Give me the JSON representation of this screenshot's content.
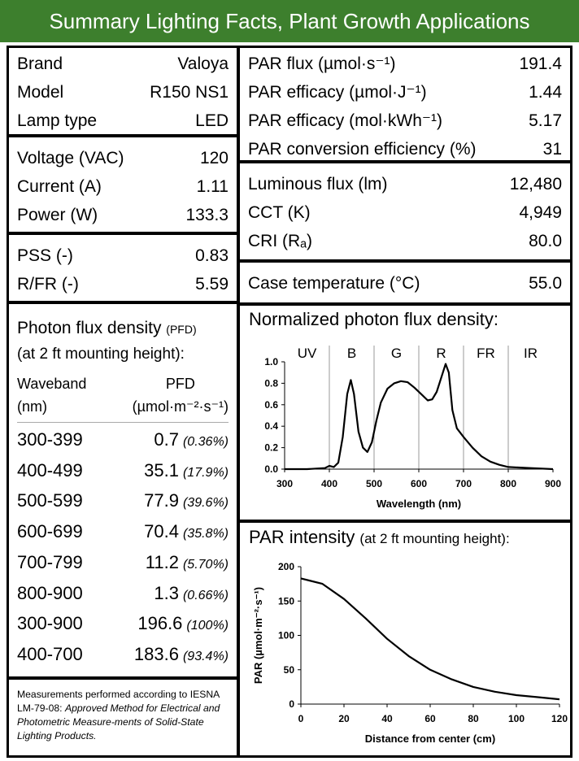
{
  "header": {
    "title": "Summary Lighting Facts, Plant Growth Applications"
  },
  "specs": [
    [
      {
        "label": "Brand",
        "value": "Valoya"
      },
      {
        "label": "Model",
        "value": "R150 NS1"
      },
      {
        "label": "Lamp type",
        "value": "LED"
      }
    ],
    [
      {
        "label": "Voltage (VAC)",
        "value": "120"
      },
      {
        "label": "Current (A)",
        "value": "1.11"
      },
      {
        "label": "Power (W)",
        "value": "133.3"
      }
    ],
    [
      {
        "label": "PSS (-)",
        "value": "0.83"
      },
      {
        "label": "R/FR (-)",
        "value": "5.59"
      }
    ]
  ],
  "par_specs": [
    [
      {
        "label": "PAR flux (µmol·s⁻¹)",
        "value": "191.4"
      },
      {
        "label": "PAR efficacy (µmol·J⁻¹)",
        "value": "1.44"
      },
      {
        "label": "PAR efficacy (mol·kWh⁻¹)",
        "value": "5.17"
      },
      {
        "label": "PAR conversion efficiency (%)",
        "value": "31"
      }
    ],
    [
      {
        "label": "Luminous flux (lm)",
        "value": "12,480"
      },
      {
        "label": "CCT (K)",
        "value": "4,949"
      },
      {
        "label": "CRI (Rₐ)",
        "value": "80.0"
      }
    ],
    [
      {
        "label": "Case temperature (°C)",
        "value": "55.0"
      }
    ]
  ],
  "pfd": {
    "title": "Photon flux density",
    "abbreviation": "(PFD)",
    "subtitle": "(at 2 ft mounting height):",
    "columns": [
      [
        "Waveband",
        "(nm)"
      ],
      [
        "PFD",
        "(µmol·m⁻²·s⁻¹)"
      ]
    ],
    "rows": [
      [
        "300-399",
        "0.7",
        "(0.36%)"
      ],
      [
        "400-499",
        "35.1",
        "(17.9%)"
      ],
      [
        "500-599",
        "77.9",
        "(39.6%)"
      ],
      [
        "600-699",
        "70.4",
        "(35.8%)"
      ],
      [
        "700-799",
        "11.2",
        "(5.70%)"
      ],
      [
        "800-900",
        "1.3",
        "(0.66%)"
      ],
      [
        "300-900",
        "196.6",
        "(100%)"
      ],
      [
        "400-700",
        "183.6",
        "(93.4%)"
      ]
    ]
  },
  "footnote": {
    "text": "Measurements performed according to IESNA LM-79-08:",
    "citation": "Approved Method for Electrical and Photometric Measure-ments of Solid-State Lighting Products."
  },
  "chart_data": [
    {
      "type": "line",
      "title": "Normalized photon flux density:",
      "x_label": "Wavelength (nm)",
      "color": "#000000",
      "band_labels": [
        "UV",
        "B",
        "G",
        "R",
        "FR",
        "IR"
      ],
      "band_edges": [
        300,
        400,
        500,
        600,
        700,
        800,
        900
      ],
      "x": [
        300,
        350,
        390,
        400,
        410,
        420,
        430,
        440,
        448,
        455,
        465,
        475,
        485,
        495,
        505,
        515,
        530,
        545,
        560,
        575,
        590,
        605,
        620,
        630,
        640,
        650,
        660,
        667,
        675,
        685,
        700,
        720,
        740,
        760,
        780,
        800,
        850,
        900
      ],
      "values": [
        0,
        0,
        0.01,
        0.03,
        0.02,
        0.06,
        0.3,
        0.7,
        0.83,
        0.7,
        0.35,
        0.2,
        0.16,
        0.25,
        0.45,
        0.62,
        0.75,
        0.8,
        0.82,
        0.81,
        0.76,
        0.7,
        0.64,
        0.65,
        0.72,
        0.85,
        0.98,
        0.9,
        0.55,
        0.38,
        0.3,
        0.2,
        0.12,
        0.07,
        0.04,
        0.02,
        0.01,
        0
      ],
      "xlim": [
        300,
        900
      ],
      "xticks": [
        300,
        400,
        500,
        600,
        700,
        800,
        900
      ],
      "ylim": [
        0,
        1
      ],
      "yticks": [
        {
          "value": 0,
          "label": "0.0"
        },
        0.2,
        0.4,
        0.6,
        0.8,
        {
          "value": 1,
          "label": "1.0"
        }
      ]
    },
    {
      "type": "line",
      "title": "PAR intensity",
      "subtitle": "(at 2 ft mounting height):",
      "x_label": "Distance from center (cm)",
      "y_label": "PAR (µmol·m⁻²·s⁻¹)",
      "color": "#000000",
      "x": [
        0,
        10,
        20,
        30,
        40,
        50,
        60,
        70,
        80,
        90,
        100,
        110,
        120
      ],
      "values": [
        183,
        175,
        153,
        125,
        95,
        70,
        50,
        36,
        25,
        18,
        13,
        10,
        7
      ],
      "xlim": [
        0,
        120
      ],
      "xticks": [
        0,
        20,
        40,
        60,
        80,
        100,
        120
      ],
      "ylim": [
        0,
        200
      ],
      "yticks": [
        0,
        50,
        100,
        150,
        200
      ]
    }
  ]
}
